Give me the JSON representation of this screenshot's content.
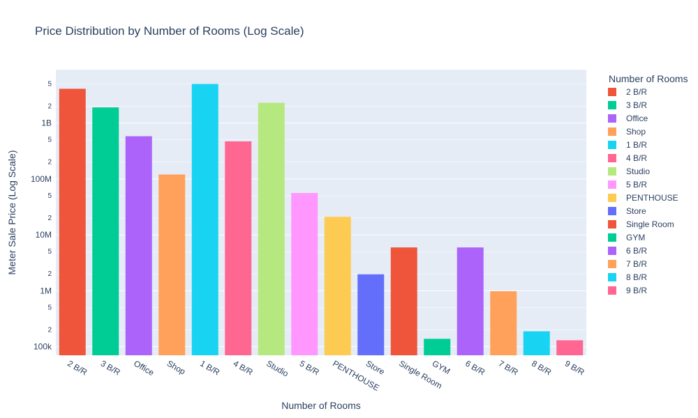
{
  "chart_data": {
    "type": "bar",
    "title": "Price Distribution by Number of Rooms (Log Scale)",
    "xlabel": "Number of Rooms",
    "ylabel": "Meter Sale Price (Log Scale)",
    "yscale": "log",
    "ylim": [
      70000,
      9000000000
    ],
    "y_major_ticks": [
      {
        "value": 100000,
        "label": "100k"
      },
      {
        "value": 1000000,
        "label": "1M"
      },
      {
        "value": 10000000,
        "label": "10M"
      },
      {
        "value": 100000000,
        "label": "100M"
      },
      {
        "value": 1000000000,
        "label": "1B"
      }
    ],
    "y_minor_ticks": [
      {
        "value": 200000,
        "label": "2"
      },
      {
        "value": 500000,
        "label": "5"
      },
      {
        "value": 2000000,
        "label": "2"
      },
      {
        "value": 5000000,
        "label": "5"
      },
      {
        "value": 20000000,
        "label": "2"
      },
      {
        "value": 50000000,
        "label": "5"
      },
      {
        "value": 200000000,
        "label": "2"
      },
      {
        "value": 500000000,
        "label": "5"
      },
      {
        "value": 2000000000,
        "label": "2"
      },
      {
        "value": 5000000000,
        "label": "5"
      }
    ],
    "grid": true,
    "legend_title": "Number of Rooms",
    "legend_position": "right",
    "categories": [
      "2 B/R",
      "3 B/R",
      "Office",
      "Shop",
      "1 B/R",
      "4 B/R",
      "Studio",
      "5 B/R",
      "PENTHOUSE",
      "Store",
      "Single Room",
      "GYM",
      "6 B/R",
      "7 B/R",
      "8 B/R",
      "9 B/R"
    ],
    "values": [
      4100000000,
      1900000000,
      580000000,
      120000000,
      5000000000,
      470000000,
      2300000000,
      56000000,
      21000000,
      1970000,
      5950000,
      138000,
      5950000,
      980000,
      188000,
      130000
    ],
    "colors": [
      "#EF553B",
      "#00CC96",
      "#AB63FA",
      "#FFA15A",
      "#19D3F3",
      "#FF6692",
      "#B6E880",
      "#FF97FF",
      "#FECB52",
      "#636EFA",
      "#EF553B",
      "#00CC96",
      "#AB63FA",
      "#FFA15A",
      "#19D3F3",
      "#FF6692"
    ]
  }
}
